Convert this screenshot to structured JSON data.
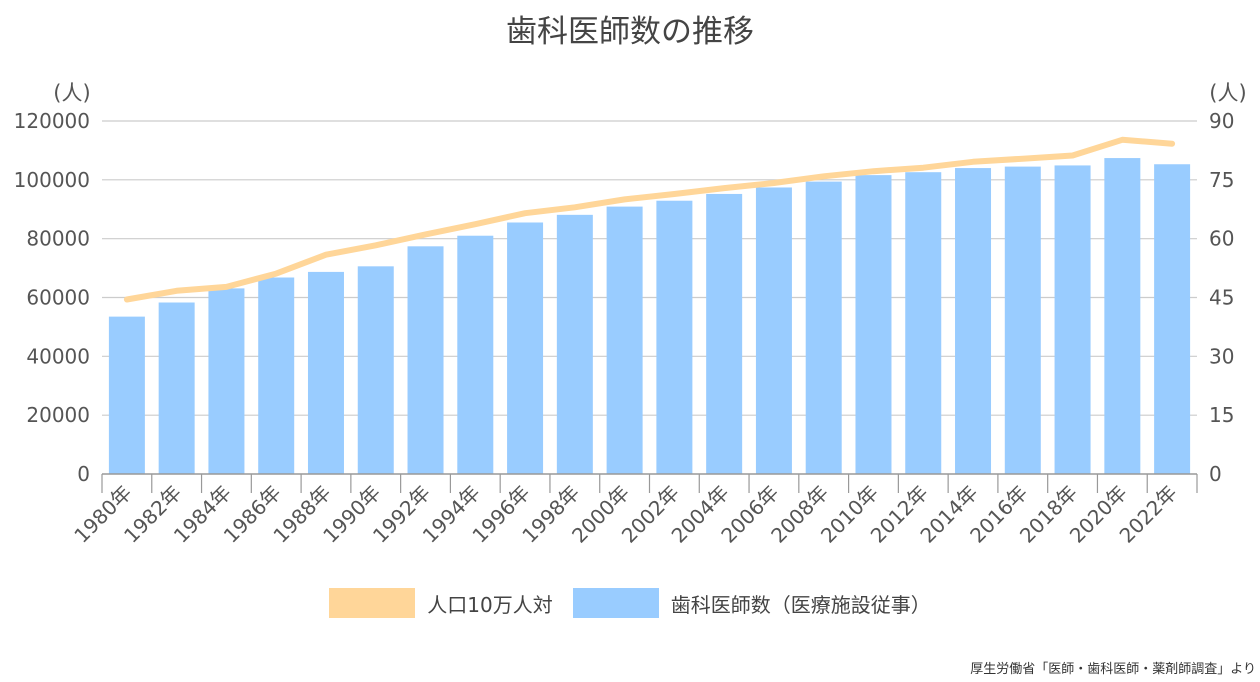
{
  "title": "歯科医師数の推移",
  "source_note": "厚生労働省「医師・歯科医師・薬剤師調査」より",
  "colors": {
    "bar": "#99ccff",
    "line": "#ffd699",
    "grid": "#cccccc",
    "axis": "#999999"
  },
  "chart_data": {
    "type": "bar",
    "title": "歯科医師数の推移",
    "xlabel": "",
    "ylabel": "(人)",
    "ylabel_right": "(人)",
    "ylim": [
      0,
      120000
    ],
    "ylim_right": [
      0,
      90
    ],
    "yticks": [
      "0",
      "20000",
      "40000",
      "60000",
      "80000",
      "100000",
      "120000"
    ],
    "yticks_right": [
      "0",
      "15",
      "30",
      "45",
      "60",
      "75",
      "90"
    ],
    "grid": true,
    "legend_position": "bottom",
    "categories": [
      "1980年",
      "1982年",
      "1984年",
      "1986年",
      "1988年",
      "1990年",
      "1992年",
      "1994年",
      "1996年",
      "1998年",
      "2000年",
      "2002年",
      "2004年",
      "2006年",
      "2008年",
      "2010年",
      "2012年",
      "2014年",
      "2016年",
      "2018年",
      "2020年",
      "2022年"
    ],
    "series": [
      {
        "name": "歯科医師数（医療施設従事）",
        "type": "bar",
        "axis": "left",
        "values": [
          53500,
          58300,
          63100,
          66800,
          68700,
          70600,
          77400,
          81000,
          85500,
          88100,
          90900,
          92900,
          95200,
          97400,
          99400,
          101600,
          102600,
          104000,
          104500,
          104900,
          107400,
          105300
        ]
      },
      {
        "name": "人口10万人対",
        "type": "line",
        "axis": "right",
        "values": [
          44.5,
          46.7,
          47.7,
          51.1,
          55.9,
          58.3,
          61.1,
          63.7,
          66.5,
          68.0,
          70.0,
          71.4,
          72.9,
          74.2,
          75.9,
          77.2,
          78.1,
          79.6,
          80.4,
          81.2,
          85.2,
          84.2
        ]
      }
    ]
  }
}
